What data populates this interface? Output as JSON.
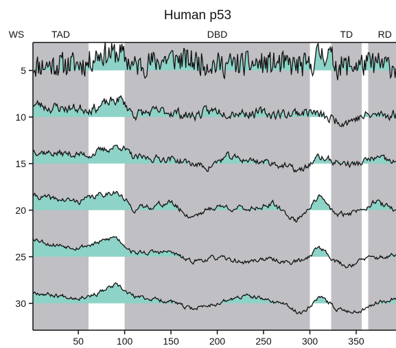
{
  "chart_data": {
    "type": "area",
    "title": "Human p53",
    "ylabel": "WS",
    "xlim": [
      1,
      393
    ],
    "x_ticks": [
      50,
      100,
      150,
      200,
      250,
      300,
      350
    ],
    "y_ticks": [
      5,
      10,
      15,
      20,
      25,
      30
    ],
    "fill_color": "#8dd3c7",
    "region_color": "#c0c0c4",
    "line_color": "#111111",
    "domains": [
      {
        "label": "TAD",
        "start": 1,
        "end": 61
      },
      {
        "label": "DBD",
        "start": 100,
        "end": 300
      },
      {
        "label": "TD",
        "start": 323,
        "end": 356
      },
      {
        "label": "RD",
        "start": 363,
        "end": 393
      }
    ],
    "series": [
      {
        "window": 5,
        "seed": 11,
        "amp": 0.62,
        "points": [
          [
            1,
            0.25
          ],
          [
            30,
            0.3
          ],
          [
            60,
            0.35
          ],
          [
            70,
            0.85
          ],
          [
            95,
            0.9
          ],
          [
            110,
            0.2
          ],
          [
            150,
            0.65
          ],
          [
            200,
            0.3
          ],
          [
            260,
            0.35
          ],
          [
            300,
            0.2
          ],
          [
            310,
            0.9
          ],
          [
            320,
            0.85
          ],
          [
            330,
            0.2
          ],
          [
            370,
            0.35
          ],
          [
            393,
            0.2
          ]
        ]
      },
      {
        "window": 10,
        "seed": 23,
        "amp": 0.22,
        "points": [
          [
            1,
            0.7
          ],
          [
            20,
            0.5
          ],
          [
            50,
            0.45
          ],
          [
            70,
            0.5
          ],
          [
            95,
            0.95
          ],
          [
            110,
            0.15
          ],
          [
            150,
            0.3
          ],
          [
            170,
            0.05
          ],
          [
            200,
            0.35
          ],
          [
            240,
            0.2
          ],
          [
            270,
            0.15
          ],
          [
            300,
            0.3
          ],
          [
            320,
            -0.1
          ],
          [
            340,
            -0.2
          ],
          [
            360,
            0.05
          ],
          [
            393,
            0.15
          ]
        ]
      },
      {
        "window": 15,
        "seed": 37,
        "amp": 0.15,
        "points": [
          [
            1,
            0.7
          ],
          [
            20,
            0.55
          ],
          [
            40,
            0.5
          ],
          [
            60,
            0.45
          ],
          [
            95,
            0.95
          ],
          [
            110,
            0.3
          ],
          [
            150,
            0.25
          ],
          [
            190,
            -0.2
          ],
          [
            210,
            0.35
          ],
          [
            230,
            0.2
          ],
          [
            260,
            0.05
          ],
          [
            290,
            -0.4
          ],
          [
            310,
            0.35
          ],
          [
            330,
            0.05
          ],
          [
            350,
            -0.05
          ],
          [
            370,
            0.3
          ],
          [
            393,
            0.05
          ]
        ]
      },
      {
        "window": 20,
        "seed": 41,
        "amp": 0.12,
        "points": [
          [
            1,
            0.75
          ],
          [
            20,
            0.6
          ],
          [
            50,
            0.45
          ],
          [
            70,
            0.75
          ],
          [
            90,
            1.0
          ],
          [
            110,
            0.05
          ],
          [
            150,
            0.4
          ],
          [
            170,
            -0.35
          ],
          [
            200,
            0.2
          ],
          [
            230,
            0.05
          ],
          [
            260,
            0.3
          ],
          [
            285,
            -0.55
          ],
          [
            310,
            0.7
          ],
          [
            330,
            -0.3
          ],
          [
            350,
            -0.05
          ],
          [
            370,
            0.45
          ],
          [
            393,
            0.0
          ]
        ]
      },
      {
        "window": 25,
        "seed": 53,
        "amp": 0.1,
        "points": [
          [
            1,
            1.0
          ],
          [
            20,
            0.65
          ],
          [
            50,
            0.5
          ],
          [
            70,
            0.7
          ],
          [
            90,
            1.05
          ],
          [
            110,
            0.2
          ],
          [
            150,
            0.25
          ],
          [
            170,
            -0.25
          ],
          [
            200,
            -0.05
          ],
          [
            230,
            -0.3
          ],
          [
            250,
            -0.1
          ],
          [
            280,
            -0.3
          ],
          [
            295,
            -0.15
          ],
          [
            310,
            0.55
          ],
          [
            330,
            -0.3
          ],
          [
            340,
            -0.5
          ],
          [
            360,
            -0.1
          ],
          [
            393,
            0.05
          ]
        ]
      },
      {
        "window": 30,
        "seed": 67,
        "amp": 0.09,
        "points": [
          [
            1,
            0.6
          ],
          [
            20,
            0.45
          ],
          [
            50,
            0.3
          ],
          [
            70,
            0.5
          ],
          [
            90,
            0.95
          ],
          [
            110,
            0.35
          ],
          [
            150,
            0.1
          ],
          [
            170,
            -0.3
          ],
          [
            200,
            0.0
          ],
          [
            230,
            0.4
          ],
          [
            250,
            0.2
          ],
          [
            270,
            0.0
          ],
          [
            290,
            -0.55
          ],
          [
            310,
            0.35
          ],
          [
            330,
            -0.3
          ],
          [
            350,
            -0.45
          ],
          [
            370,
            0.0
          ],
          [
            393,
            0.3
          ]
        ]
      }
    ]
  }
}
